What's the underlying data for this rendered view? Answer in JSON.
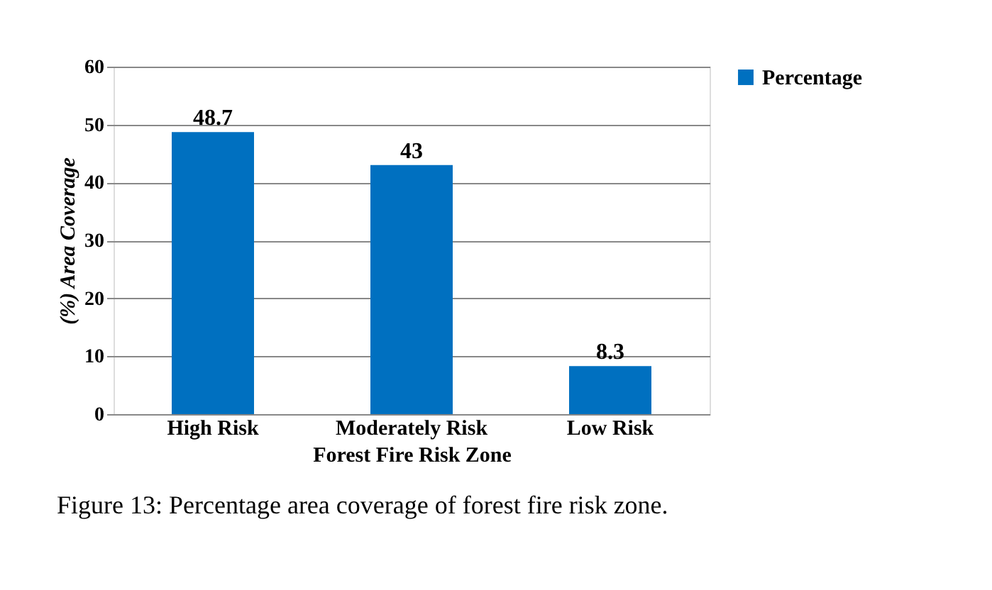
{
  "chart_data": {
    "type": "bar",
    "categories": [
      "High Risk",
      "Moderately Risk",
      "Low Risk"
    ],
    "series": [
      {
        "name": "Percentage",
        "color": "#0070c0",
        "values": [
          48.7,
          43,
          8.3
        ]
      }
    ],
    "xlabel": "Forest Fire Risk Zone",
    "ylabel": "(%) Area Coverage",
    "ylim": [
      0,
      60
    ],
    "yticks": [
      0,
      10,
      20,
      30,
      40,
      50,
      60
    ],
    "grid": "y",
    "legend": "right",
    "data_labels": true,
    "annotations": [
      "Figure 13: Percentage area coverage of forest fire risk zone."
    ]
  }
}
